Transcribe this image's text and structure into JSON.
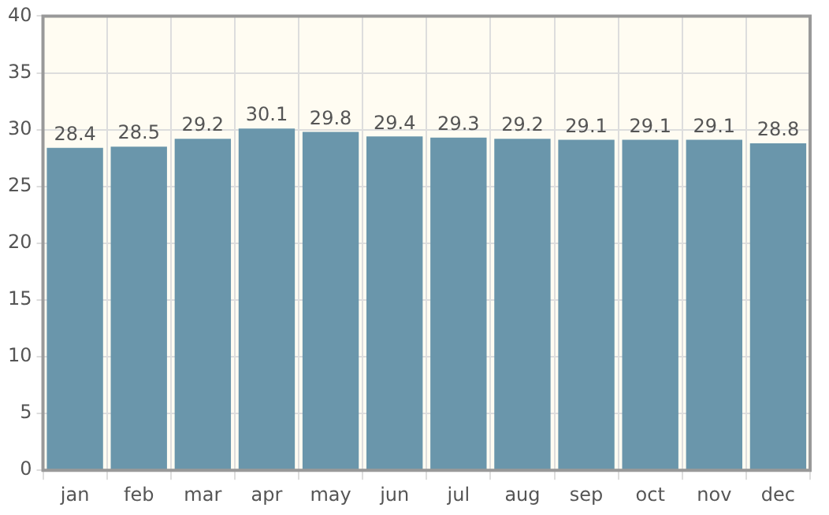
{
  "chart_data": {
    "type": "bar",
    "categories": [
      "jan",
      "feb",
      "mar",
      "apr",
      "may",
      "jun",
      "jul",
      "aug",
      "sep",
      "oct",
      "nov",
      "dec"
    ],
    "values": [
      28.4,
      28.5,
      29.2,
      30.1,
      29.8,
      29.4,
      29.3,
      29.2,
      29.1,
      29.1,
      29.1,
      28.8
    ],
    "color": "#6a96ab",
    "ylim": [
      0,
      40
    ],
    "yticks": [
      0,
      5,
      10,
      15,
      20,
      25,
      30,
      35,
      40
    ],
    "grid": true,
    "data_labels": true,
    "legend": false
  }
}
